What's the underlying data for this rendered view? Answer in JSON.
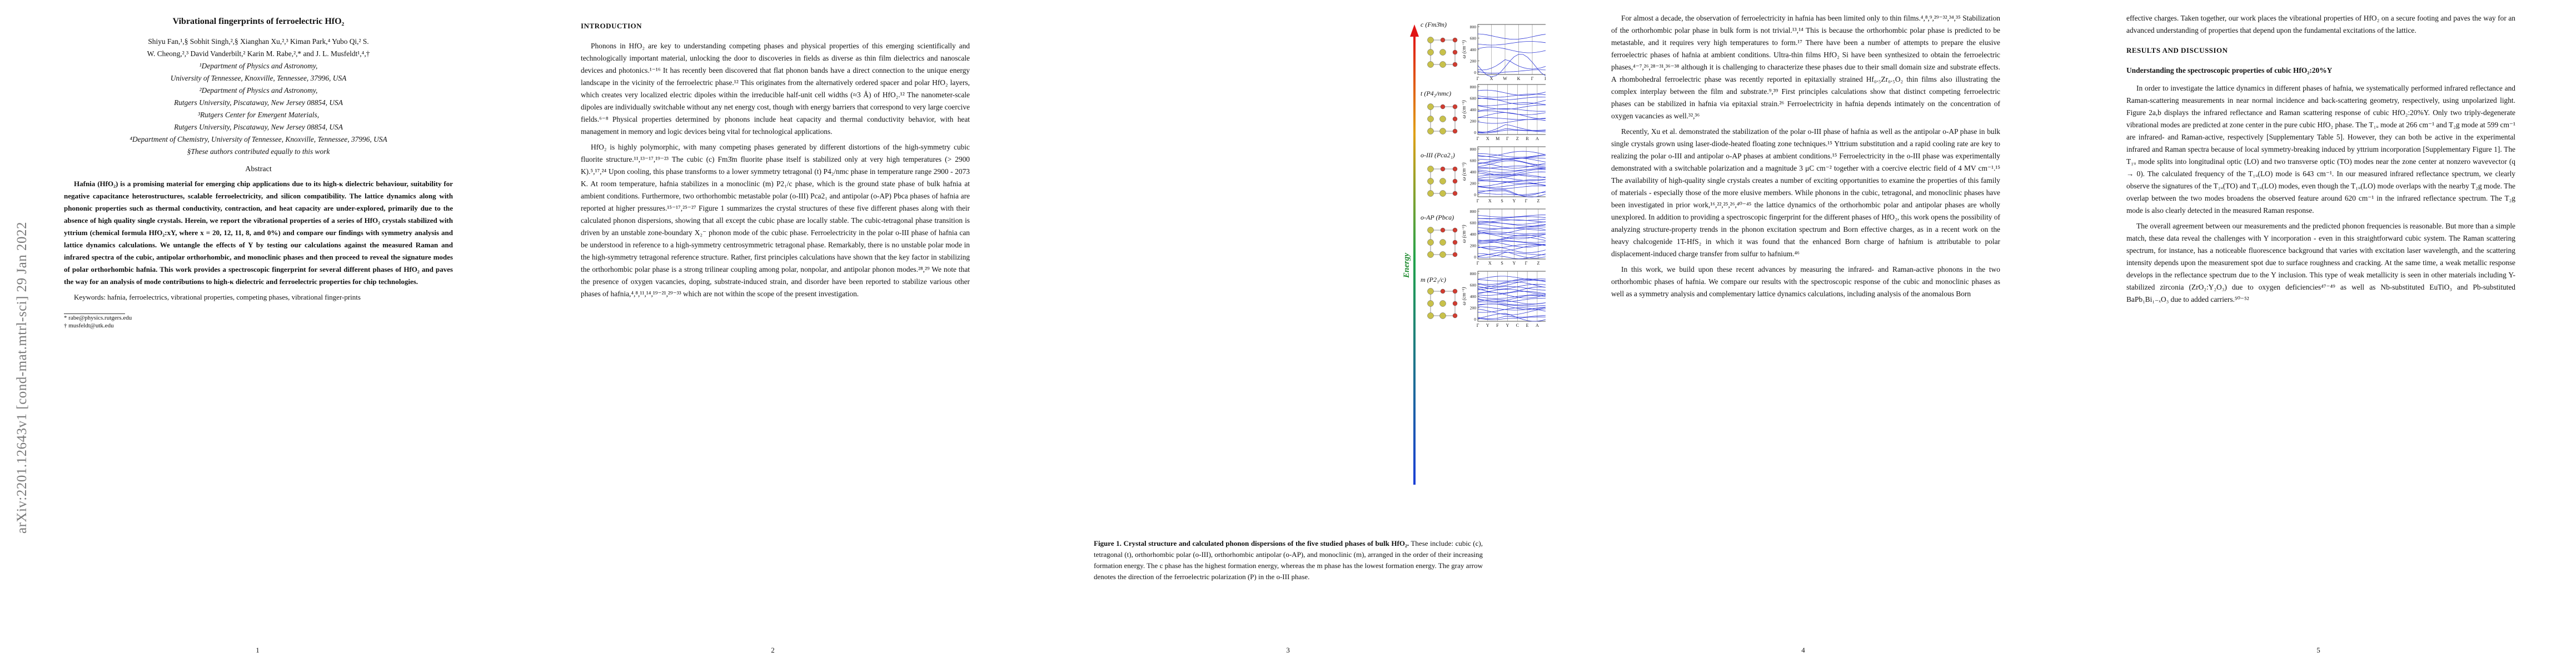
{
  "arxiv_stamp": "arXiv:2201.12643v1  [cond-mat.mtrl-sci]  29 Jan 2022",
  "page1": {
    "title": "Vibrational fingerprints of ferroelectric HfO₂",
    "authors_line1": "Shiyu Fan,¹,§ Sobhit Singh,²,§ Xianghan Xu,²,³ Kiman Park,⁴ Yubo Qi,² S.",
    "authors_line2": "W. Cheong,²,³ David Vanderbilt,² Karin M. Rabe,²,* and J. L. Musfeldt¹,⁴,†",
    "affiliations": [
      "¹Department of Physics and Astronomy,",
      "University of Tennessee, Knoxville, Tennessee, 37996, USA",
      "²Department of Physics and Astronomy,",
      "Rutgers University, Piscataway, New Jersey 08854, USA",
      "³Rutgers Center for Emergent Materials,",
      "Rutgers University, Piscataway, New Jersey 08854, USA",
      "⁴Department of Chemistry, University of Tennessee, Knoxville, Tennessee, 37996, USA",
      "§These authors contributed equally to this work"
    ],
    "abstract_heading": "Abstract",
    "abstract": "Hafnia (HfO₂) is a promising material for emerging chip applications due to its high-κ dielectric behaviour, suitability for negative capacitance heterostructures, scalable ferroelectricity, and silicon compatibility. The lattice dynamics along with phononic properties such as thermal conductivity, contraction, and heat capacity are under-explored, primarily due to the absence of high quality single crystals. Herein, we report the vibrational properties of a series of HfO₂ crystals stabilized with yttrium (chemical formula HfO₂:xY, where x = 20, 12, 11, 8, and 0%) and compare our findings with symmetry analysis and lattice dynamics calculations. We untangle the effects of Y by testing our calculations against the measured Raman and infrared spectra of the cubic, antipolar orthorhombic, and monoclinic phases and then proceed to reveal the signature modes of polar orthorhombic hafnia. This work provides a spectroscopic fingerprint for several different phases of HfO₂ and paves the way for an analysis of mode contributions to high-κ dielectric and ferroelectric properties for chip technologies.",
    "keywords": "Keywords: hafnia, ferroelectrics, vibrational properties, competing phases, vibrational finger-prints",
    "footnotes": [
      "* rabe@physics.rutgers.edu",
      "† musfeldt@utk.edu"
    ],
    "page_number": "1"
  },
  "page2": {
    "heading": "INTRODUCTION",
    "paragraphs": [
      "Phonons in HfO₂ are key to understanding competing phases and physical properties of this emerging scientifically and technologically important material, unlocking the door to discoveries in fields as diverse as thin film dielectrics and nanoscale devices and photonics.¹⁻¹⁶ It has recently been discovered that flat phonon bands have a direct connection to the unique energy landscape in the vicinity of the ferroelectric phase.¹² This originates from the alternatively ordered spacer and polar HfO₂ layers, which creates very localized electric dipoles within the irreducible half-unit cell widths (≈3 Å) of HfO₂.¹² The nanometer-scale dipoles are individually switchable without any net energy cost, though with energy barriers that correspond to very large coercive fields.⁶⁻⁸ Physical properties determined by phonons include heat capacity and thermal conductivity behavior, with heat management in memory and logic devices being vital for technological applications.",
      "HfO₂ is highly polymorphic, with many competing phases generated by different distortions of the high-symmetry cubic fluorite structure.¹¹,¹³⁻¹⁷,¹⁹⁻²³ The cubic (c) Fm3̄m fluorite phase itself is stabilized only at very high temperatures (> 2900 K).⁵,¹⁷,²⁴ Upon cooling, this phase transforms to a lower symmetry tetragonal (t) P4₂/nmc phase in temperature range 2900 - 2073 K. At room temperature, hafnia stabilizes in a monoclinic (m) P2₁/c phase, which is the ground state phase of bulk hafnia at ambient conditions. Furthermore, two orthorhombic metastable polar (o-III) Pca2₁ and antipolar (o-AP) Pbca phases of hafnia are reported at higher pressures.¹⁵⁻¹⁷,²⁵⁻²⁷ Figure 1 summarizes the crystal structures of these five different phases along with their calculated phonon dispersions, showing that all except the cubic phase are locally stable. The cubic-tetragonal phase transition is driven by an unstable zone-boundary X₂⁻ phonon mode of the cubic phase. Ferroelectricity in the polar o-III phase of hafnia can be understood in reference to a high-symmetry centrosymmetric tetragonal phase. Remarkably, there is no unstable polar mode in the high-symmetry tetragonal reference structure. Rather, first principles calculations have shown that the key factor in stabilizing the orthorhombic polar phase is a strong trilinear coupling among polar, nonpolar, and antipolar phonon modes.²⁸,²⁹ We note that the presence of oxygen vacancies, doping, substrate-induced strain, and disorder have been reported to stabilize various other phases of hafnia,⁴,⁸,¹¹,¹⁴,¹⁹⁻²¹,²⁹⁻³³ which are not within the scope of the present investigation."
    ],
    "page_number": "2"
  },
  "page3": {
    "energy_label": "Energy",
    "phase_labels": [
      "c (Fm3̄m)",
      "t (P4₂/nmc)",
      "o-III (Pca2₁)",
      "o-AP (Pbca)",
      "m (P2₁/c)"
    ],
    "ylabel": "ω (cm⁻¹)",
    "yticks": [
      "800",
      "600",
      "400",
      "200",
      "0"
    ],
    "panel_ticks": [
      [
        "Γ",
        "X",
        "W",
        "K",
        "Γ",
        "L",
        "U",
        "W",
        "L"
      ],
      [
        "Γ",
        "X",
        "M",
        "Γ",
        "Z",
        "R",
        "A",
        "Z",
        "X",
        "R",
        "M",
        "A"
      ],
      [
        "Γ",
        "X",
        "S",
        "Y",
        "Γ",
        "Z",
        "U",
        "R",
        "T",
        "Z"
      ],
      [
        "Γ",
        "X",
        "S",
        "Y",
        "Γ",
        "Z",
        "U",
        "R",
        "T",
        "Z"
      ],
      [
        "Γ",
        "Y",
        "F",
        "Y",
        "C",
        "E",
        "A",
        "X",
        "Z",
        "Γ",
        "D",
        "Y"
      ]
    ],
    "ylim": [
      0,
      900
    ],
    "caption_bold": "Figure 1.   Crystal structure and calculated phonon dispersions of the five studied phases of bulk HfO₂.",
    "caption_rest": " These include: cubic (c), tetragonal (t), orthorhombic polar (o-III), orthorhombic antipolar (o-AP), and monoclinic (m), arranged in the order of their increasing formation energy. The c phase has the highest formation energy, whereas the m phase has the lowest formation energy. The gray arrow denotes the direction of the ferroelectric polarization (P) in the o-III phase.",
    "page_number": "3",
    "colors": {
      "band": "#2b35d6",
      "hf": "#c8c14a",
      "o": "#d23c30",
      "arrow_top": "#e01515",
      "arrow_bottom": "#1a3fd6"
    }
  },
  "page4": {
    "paragraphs": [
      "For almost a decade, the observation of ferroelectricity in hafnia has been limited only to thin films.⁴,⁸,⁹,²⁹⁻³²,³⁴,³⁵ Stabilization of the orthorhombic polar phase in bulk form is not trivial.¹³,¹⁴ This is because the orthorhombic polar phase is predicted to be metastable, and it requires very high temperatures to form.¹⁷ There have been a number of attempts to prepare the elusive ferroelectric phases of hafnia at ambient conditions. Ultra-thin films HfO₂ Si have been synthesized to obtain the ferroelectric phases,⁴⁻⁷,²⁶,²⁸⁻³¹,³⁶⁻³⁸ although it is challenging to characterize these phases due to their small domain size and substrate effects. A rhombohedral ferroelectric phase was recently reported in epitaxially strained Hf₀.₅Zr₀.₅O₂ thin films also illustrating the complex interplay between the film and substrate.⁹,³⁹ First principles calculations show that distinct competing ferroelectric phases can be stabilized in hafnia via epitaxial strain.²⁶ Ferroelectricity in hafnia depends intimately on the concentration of oxygen vacancies as well.³²,³⁶",
      "Recently, Xu et al. demonstrated the stabilization of the polar o-III phase of hafnia as well as the antipolar o-AP phase in bulk single crystals grown using laser-diode-heated floating zone techniques.¹⁵ Yttrium substitution and a rapid cooling rate are key to realizing the polar o-III and antipolar o-AP phases at ambient conditions.¹⁵ Ferroelectricity in the o-III phase was experimentally demonstrated with a switchable polarization and a magnitude 3 μC cm⁻² together with a coercive electric field of 4 MV cm⁻¹.¹⁵ The availability of high-quality single crystals creates a number of exciting opportunities to examine the properties of this family of materials - especially those of the more elusive members. While phonons in the cubic, tetragonal, and monoclinic phases have been investigated in prior work,¹⁶,²²,²⁵,²⁶,⁴⁰⁻⁴⁵ the lattice dynamics of the orthorhombic polar and antipolar phases are wholly unexplored. In addition to providing a spectroscopic fingerprint for the different phases of HfO₂, this work opens the possibility of analyzing structure-property trends in the phonon excitation spectrum and Born effective charges, as in a recent work on the heavy chalcogenide 1T-HfS₂ in which it was found that the enhanced Born charge of hafnium is attributable to polar displacement-induced charge transfer from sulfur to hafnium.⁴⁶",
      "In this work, we build upon these recent advances by measuring the infrared- and Raman-active phonons in the two orthorhombic phases of hafnia. We compare our results with the spectroscopic response of the cubic and monoclinic phases as well as a symmetry analysis and complementary lattice dynamics calculations, including analysis of the anomalous Born"
    ],
    "page_number": "4"
  },
  "page5": {
    "paragraph0": "effective charges. Taken together, our work places the vibrational properties of HfO₂ on a secure footing and paves the way for an advanced understanding of properties that depend upon the fundamental excitations of the lattice.",
    "heading": "RESULTS AND DISCUSSION",
    "subheading": "Understanding the spectroscopic properties of cubic HfO₂:20%Y",
    "paragraphs": [
      "In order to investigate the lattice dynamics in different phases of hafnia, we systematically performed infrared reflectance and Raman-scattering measurements in near normal incidence and back-scattering geometry, respectively, using unpolarized light. Figure 2a,b displays the infrared reflectance and Raman scattering response of cubic HfO₂:20%Y. Only two triply-degenerate vibrational modes are predicted at zone center in the pure cubic HfO₂ phase. The T₁ᵤ mode at 266 cm⁻¹ and T₂g mode at 599 cm⁻¹ are infrared- and Raman-active, respectively [Supplementary Table 5]. However, they can both be active in the experimental infrared and Raman spectra because of local symmetry-breaking induced by yttrium incorporation [Supplementary Figure 1]. The T₁ᵤ mode splits into longitudinal optic (LO) and two transverse optic (TO) modes near the zone center at nonzero wavevector (q → 0). The calculated frequency of the T₁ᵤ(LO) mode is 643 cm⁻¹. In our measured infrared reflectance spectrum, we clearly observe the signatures of the T₁ᵤ(TO) and T₁ᵤ(LO) modes, even though the T₁ᵤ(LO) mode overlaps with the nearby T₂g mode. The overlap between the two modes broadens the observed feature around 620 cm⁻¹ in the infrared reflectance spectrum. The T₂g mode is also clearly detected in the measured Raman response.",
      "The overall agreement between our measurements and the predicted phonon frequencies is reasonable. But more than a simple match, these data reveal the challenges with Y incorporation - even in this straightforward cubic system. The Raman scattering spectrum, for instance, has a noticeable fluorescence background that varies with excitation laser wavelength, and the scattering intensity depends upon the measurement spot due to surface roughness and cracking. At the same time, a weak metallic response develops in the reflectance spectrum due to the Y inclusion. This type of weak metallicity is seen in other materials including Y-stabilized zirconia (ZrO₂:Y₂O₃) due to oxygen deficiencies⁴⁷⁻⁴⁹ as well as Nb-substituted EuTiO₃ and Pb-substituted BaPb₁Bi₁₋ₓO₃ due to added carriers.⁵⁰⁻⁵²"
    ],
    "page_number": "5"
  }
}
